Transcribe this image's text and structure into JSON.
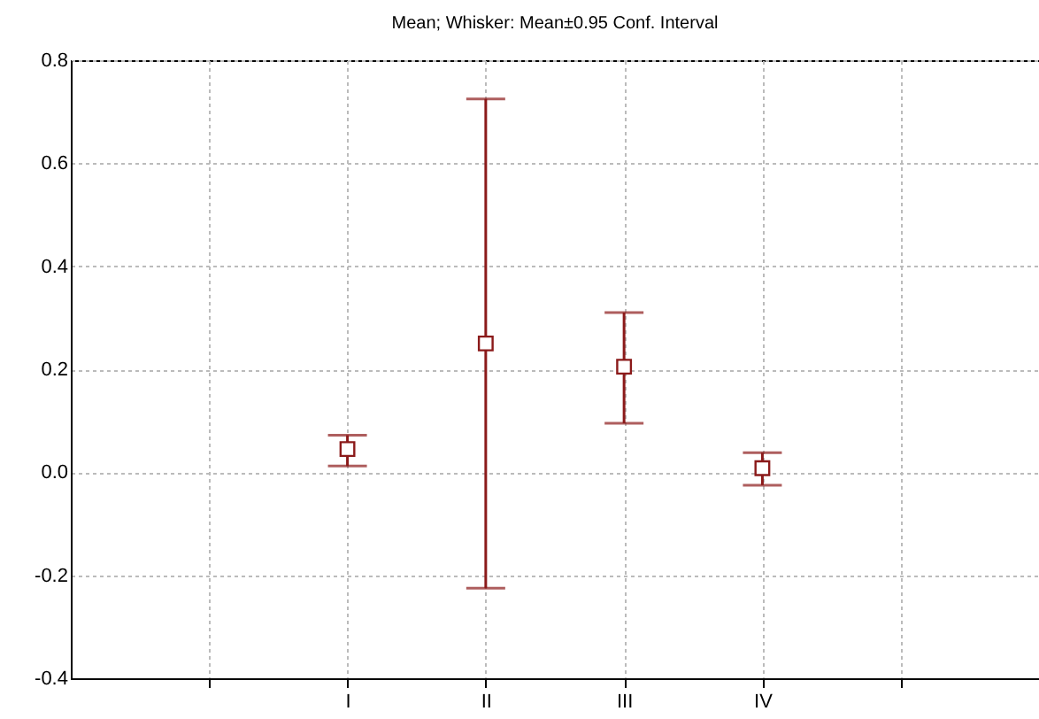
{
  "chart_data": {
    "type": "scatter",
    "title": "Mean; Whisker: Mean±0.95 Conf. Interval",
    "categories": [
      null,
      "I",
      "II",
      "III",
      "IV",
      null
    ],
    "series": [
      {
        "color": "#8b1a1a",
        "values": [
          null,
          0.045,
          0.25,
          0.205,
          0.008,
          null
        ],
        "errors": [
          null,
          [
            0.012,
            0.072
          ],
          [
            -0.225,
            0.725
          ],
          [
            0.095,
            0.31
          ],
          [
            -0.025,
            0.038
          ],
          null
        ]
      }
    ],
    "ylim": [
      -0.4,
      0.8
    ],
    "yticks": [
      {
        "value": -0.4,
        "label": "-0.4"
      },
      {
        "value": -0.2,
        "label": "-0.2"
      },
      {
        "value": 0,
        "label": "0.0"
      },
      {
        "value": 0.2,
        "label": "0.2"
      },
      {
        "value": 0.4,
        "label": "0.4"
      },
      {
        "value": 0.6,
        "label": "0.6"
      },
      {
        "value": 0.8,
        "label": "0.8"
      }
    ],
    "grid": true,
    "marker": "square"
  }
}
